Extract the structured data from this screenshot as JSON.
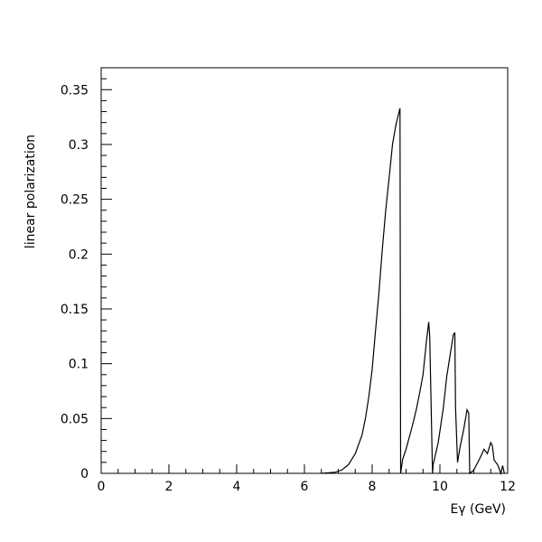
{
  "chart_data": {
    "type": "line",
    "title": "",
    "xlabel": "Eγ (GeV)",
    "ylabel": "linear polarization",
    "xlim": [
      0,
      12
    ],
    "ylim": [
      0,
      0.37
    ],
    "grid": false,
    "legend": "none",
    "x_ticks": [
      0,
      2,
      4,
      6,
      8,
      10,
      12
    ],
    "x_tick_labels": [
      "0",
      "2",
      "4",
      "6",
      "8",
      "10",
      "12"
    ],
    "y_ticks": [
      0,
      0.05,
      0.1,
      0.15,
      0.2,
      0.25,
      0.3,
      0.35
    ],
    "y_tick_labels": [
      "0",
      "0.05",
      "0.1",
      "0.15",
      "0.2",
      "0.25",
      "0.3",
      "0.35"
    ],
    "line_color": "#000000",
    "series": [
      {
        "x": [
          6.5,
          6.9,
          7.1,
          7.3,
          7.5,
          7.7,
          7.8,
          7.9,
          8.0,
          8.1,
          8.2,
          8.3,
          8.4,
          8.5,
          8.6,
          8.7,
          8.82,
          8.84,
          8.9,
          9.0,
          9.2,
          9.3,
          9.4,
          9.5,
          9.6,
          9.67,
          9.7,
          9.78,
          9.8,
          9.95,
          10.1,
          10.2,
          10.3,
          10.4,
          10.44,
          10.46,
          10.52,
          10.6,
          10.7,
          10.8,
          10.85,
          10.88,
          11.0,
          11.2,
          11.3,
          11.4,
          11.5,
          11.55,
          11.6,
          11.7,
          11.8,
          11.85,
          11.9
        ],
        "y": [
          0.0,
          0.001,
          0.003,
          0.008,
          0.018,
          0.035,
          0.05,
          0.07,
          0.095,
          0.13,
          0.165,
          0.205,
          0.24,
          0.27,
          0.3,
          0.318,
          0.333,
          0.0,
          0.013,
          0.022,
          0.045,
          0.058,
          0.073,
          0.09,
          0.12,
          0.138,
          0.125,
          0.0,
          0.008,
          0.028,
          0.06,
          0.088,
          0.108,
          0.127,
          0.128,
          0.06,
          0.01,
          0.025,
          0.04,
          0.058,
          0.055,
          0.0,
          0.003,
          0.015,
          0.022,
          0.018,
          0.028,
          0.025,
          0.012,
          0.008,
          0.0,
          0.007,
          0.0
        ]
      }
    ]
  }
}
